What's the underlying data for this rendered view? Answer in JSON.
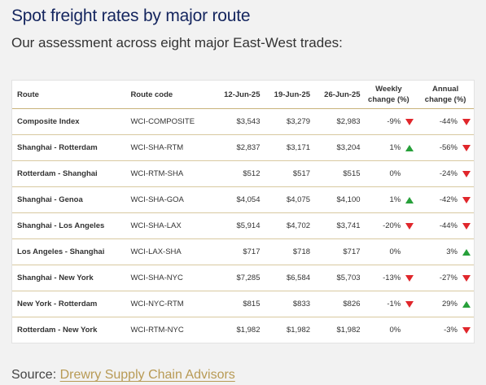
{
  "title": "Spot freight rates by major route",
  "subtitle": "Our assessment across eight major East-West trades:",
  "table": {
    "headers": [
      "Route",
      "Route code",
      "12-Jun-25",
      "19-Jun-25",
      "26-Jun-25",
      "Weekly\nchange (%)",
      "Annual\nchange (%)"
    ],
    "rows": [
      {
        "route": "Composite Index",
        "code": "WCI-COMPOSITE",
        "d1": "$3,543",
        "d2": "$3,279",
        "d3": "$2,983",
        "weekly": "-9%",
        "weekly_dir": "down",
        "annual": "-44%",
        "annual_dir": "down"
      },
      {
        "route": "Shanghai - Rotterdam",
        "code": "WCI-SHA-RTM",
        "d1": "$2,837",
        "d2": "$3,171",
        "d3": "$3,204",
        "weekly": "1%",
        "weekly_dir": "up",
        "annual": "-56%",
        "annual_dir": "down"
      },
      {
        "route": "Rotterdam - Shanghai",
        "code": "WCI-RTM-SHA",
        "d1": "$512",
        "d2": "$517",
        "d3": "$515",
        "weekly": "0%",
        "weekly_dir": "none",
        "annual": "-24%",
        "annual_dir": "down"
      },
      {
        "route": "Shanghai - Genoa",
        "code": "WCI-SHA-GOA",
        "d1": "$4,054",
        "d2": "$4,075",
        "d3": "$4,100",
        "weekly": "1%",
        "weekly_dir": "up",
        "annual": "-42%",
        "annual_dir": "down"
      },
      {
        "route": "Shanghai - Los Angeles",
        "code": "WCI-SHA-LAX",
        "d1": "$5,914",
        "d2": "$4,702",
        "d3": "$3,741",
        "weekly": "-20%",
        "weekly_dir": "down",
        "annual": "-44%",
        "annual_dir": "down"
      },
      {
        "route": "Los Angeles - Shanghai",
        "code": "WCI-LAX-SHA",
        "d1": "$717",
        "d2": "$718",
        "d3": "$717",
        "weekly": "0%",
        "weekly_dir": "none",
        "annual": "3%",
        "annual_dir": "up"
      },
      {
        "route": "Shanghai - New York",
        "code": "WCI-SHA-NYC",
        "d1": "$7,285",
        "d2": "$6,584",
        "d3": "$5,703",
        "weekly": "-13%",
        "weekly_dir": "down",
        "annual": "-27%",
        "annual_dir": "down"
      },
      {
        "route": "New York - Rotterdam",
        "code": "WCI-NYC-RTM",
        "d1": "$815",
        "d2": "$833",
        "d3": "$826",
        "weekly": "-1%",
        "weekly_dir": "down",
        "annual": "29%",
        "annual_dir": "up"
      },
      {
        "route": "Rotterdam - New York",
        "code": "WCI-RTM-NYC",
        "d1": "$1,982",
        "d2": "$1,982",
        "d3": "$1,982",
        "weekly": "0%",
        "weekly_dir": "none",
        "annual": "-3%",
        "annual_dir": "down"
      }
    ]
  },
  "source": {
    "label": "Source: ",
    "link_text": "Drewry Supply Chain Advisors"
  },
  "colors": {
    "title": "#14255e",
    "up": "#27a03a",
    "down": "#e0262b",
    "rule": "#c8b27a",
    "link": "#b89a55"
  },
  "icons": {
    "up": "triangle-up-icon",
    "down": "triangle-down-icon"
  }
}
